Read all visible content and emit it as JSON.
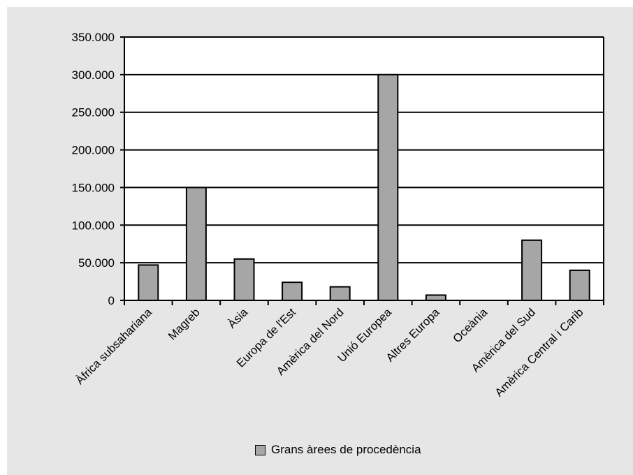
{
  "chart_data": {
    "type": "bar",
    "categories": [
      "Àfrica subsahariana",
      "Magreb",
      "Àsia",
      "Europa de l'Est",
      "Amèrica del Nord",
      "Unió Europea",
      "Altres Europa",
      "Oceània",
      "Amèrica del Sud",
      "Amèrica Central i Carib"
    ],
    "series": [
      {
        "name": "Grans àrees de procedència",
        "values": [
          47000,
          150000,
          55000,
          24000,
          18000,
          300000,
          7000,
          0,
          80000,
          40000
        ]
      }
    ],
    "yticks": [
      "0",
      "50.000",
      "100.000",
      "150.000",
      "200.000",
      "250.000",
      "300.000",
      "350.000"
    ],
    "ylim": [
      0,
      350000
    ],
    "grid": true,
    "legend_position": "bottom",
    "colors": {
      "bar": "#a6a6a6",
      "bar_stroke": "#000000",
      "panel": "#e6e6e6",
      "plot": "#ffffff"
    }
  }
}
